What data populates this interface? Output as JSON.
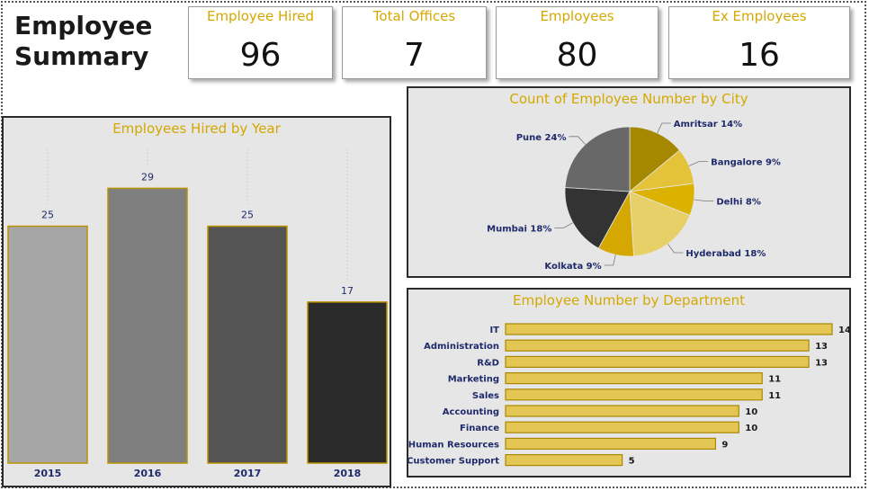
{
  "title": {
    "line1": "Employee",
    "line2": "Summary"
  },
  "kpis": [
    {
      "label": "Employee Hired",
      "value": "96"
    },
    {
      "label": "Total Offices",
      "value": "7"
    },
    {
      "label": "Employees",
      "value": "80"
    },
    {
      "label": "Ex Employees",
      "value": "16"
    }
  ],
  "colors": {
    "accent": "#d4a800",
    "label_text": "#1f2a6b",
    "panel_bg": "#e6e6e6"
  },
  "chart_data": [
    {
      "type": "bar",
      "title": "Employees Hired by Year",
      "categories": [
        "2015",
        "2016",
        "2017",
        "2018"
      ],
      "values": [
        25,
        29,
        25,
        17
      ],
      "colors": [
        "#a6a6a6",
        "#7f7f7f",
        "#545454",
        "#2b2b2b"
      ],
      "ylim": [
        0,
        33.5
      ],
      "grid": false
    },
    {
      "type": "pie",
      "title": "Count of Employee Number by City",
      "labels": [
        "Amritsar",
        "Bangalore",
        "Delhi",
        "Hyderabad",
        "Kolkata",
        "Mumbai",
        "Pune"
      ],
      "values": [
        14,
        9,
        8,
        18,
        9,
        18,
        24
      ],
      "slice_labels": [
        "Amritsar 14%",
        "Bangalore 9%",
        "Delhi 8%",
        "Hyderabad 18%",
        "Kolkata 9%",
        "Mumbai 18%",
        "Pune 24%"
      ],
      "colors": [
        "#a68700",
        "#e4c23a",
        "#dcb200",
        "#e8d068",
        "#d4a800",
        "#333333",
        "#686868"
      ]
    },
    {
      "type": "bar",
      "orientation": "horizontal",
      "title": "Employee Number by Department",
      "categories": [
        "IT",
        "Administration",
        "R&D",
        "Marketing",
        "Sales",
        "Accounting",
        "Finance",
        "Human Resources",
        "Customer Support"
      ],
      "values": [
        14,
        13,
        13,
        11,
        11,
        10,
        10,
        9,
        5
      ],
      "xlim": [
        0,
        14
      ]
    }
  ]
}
